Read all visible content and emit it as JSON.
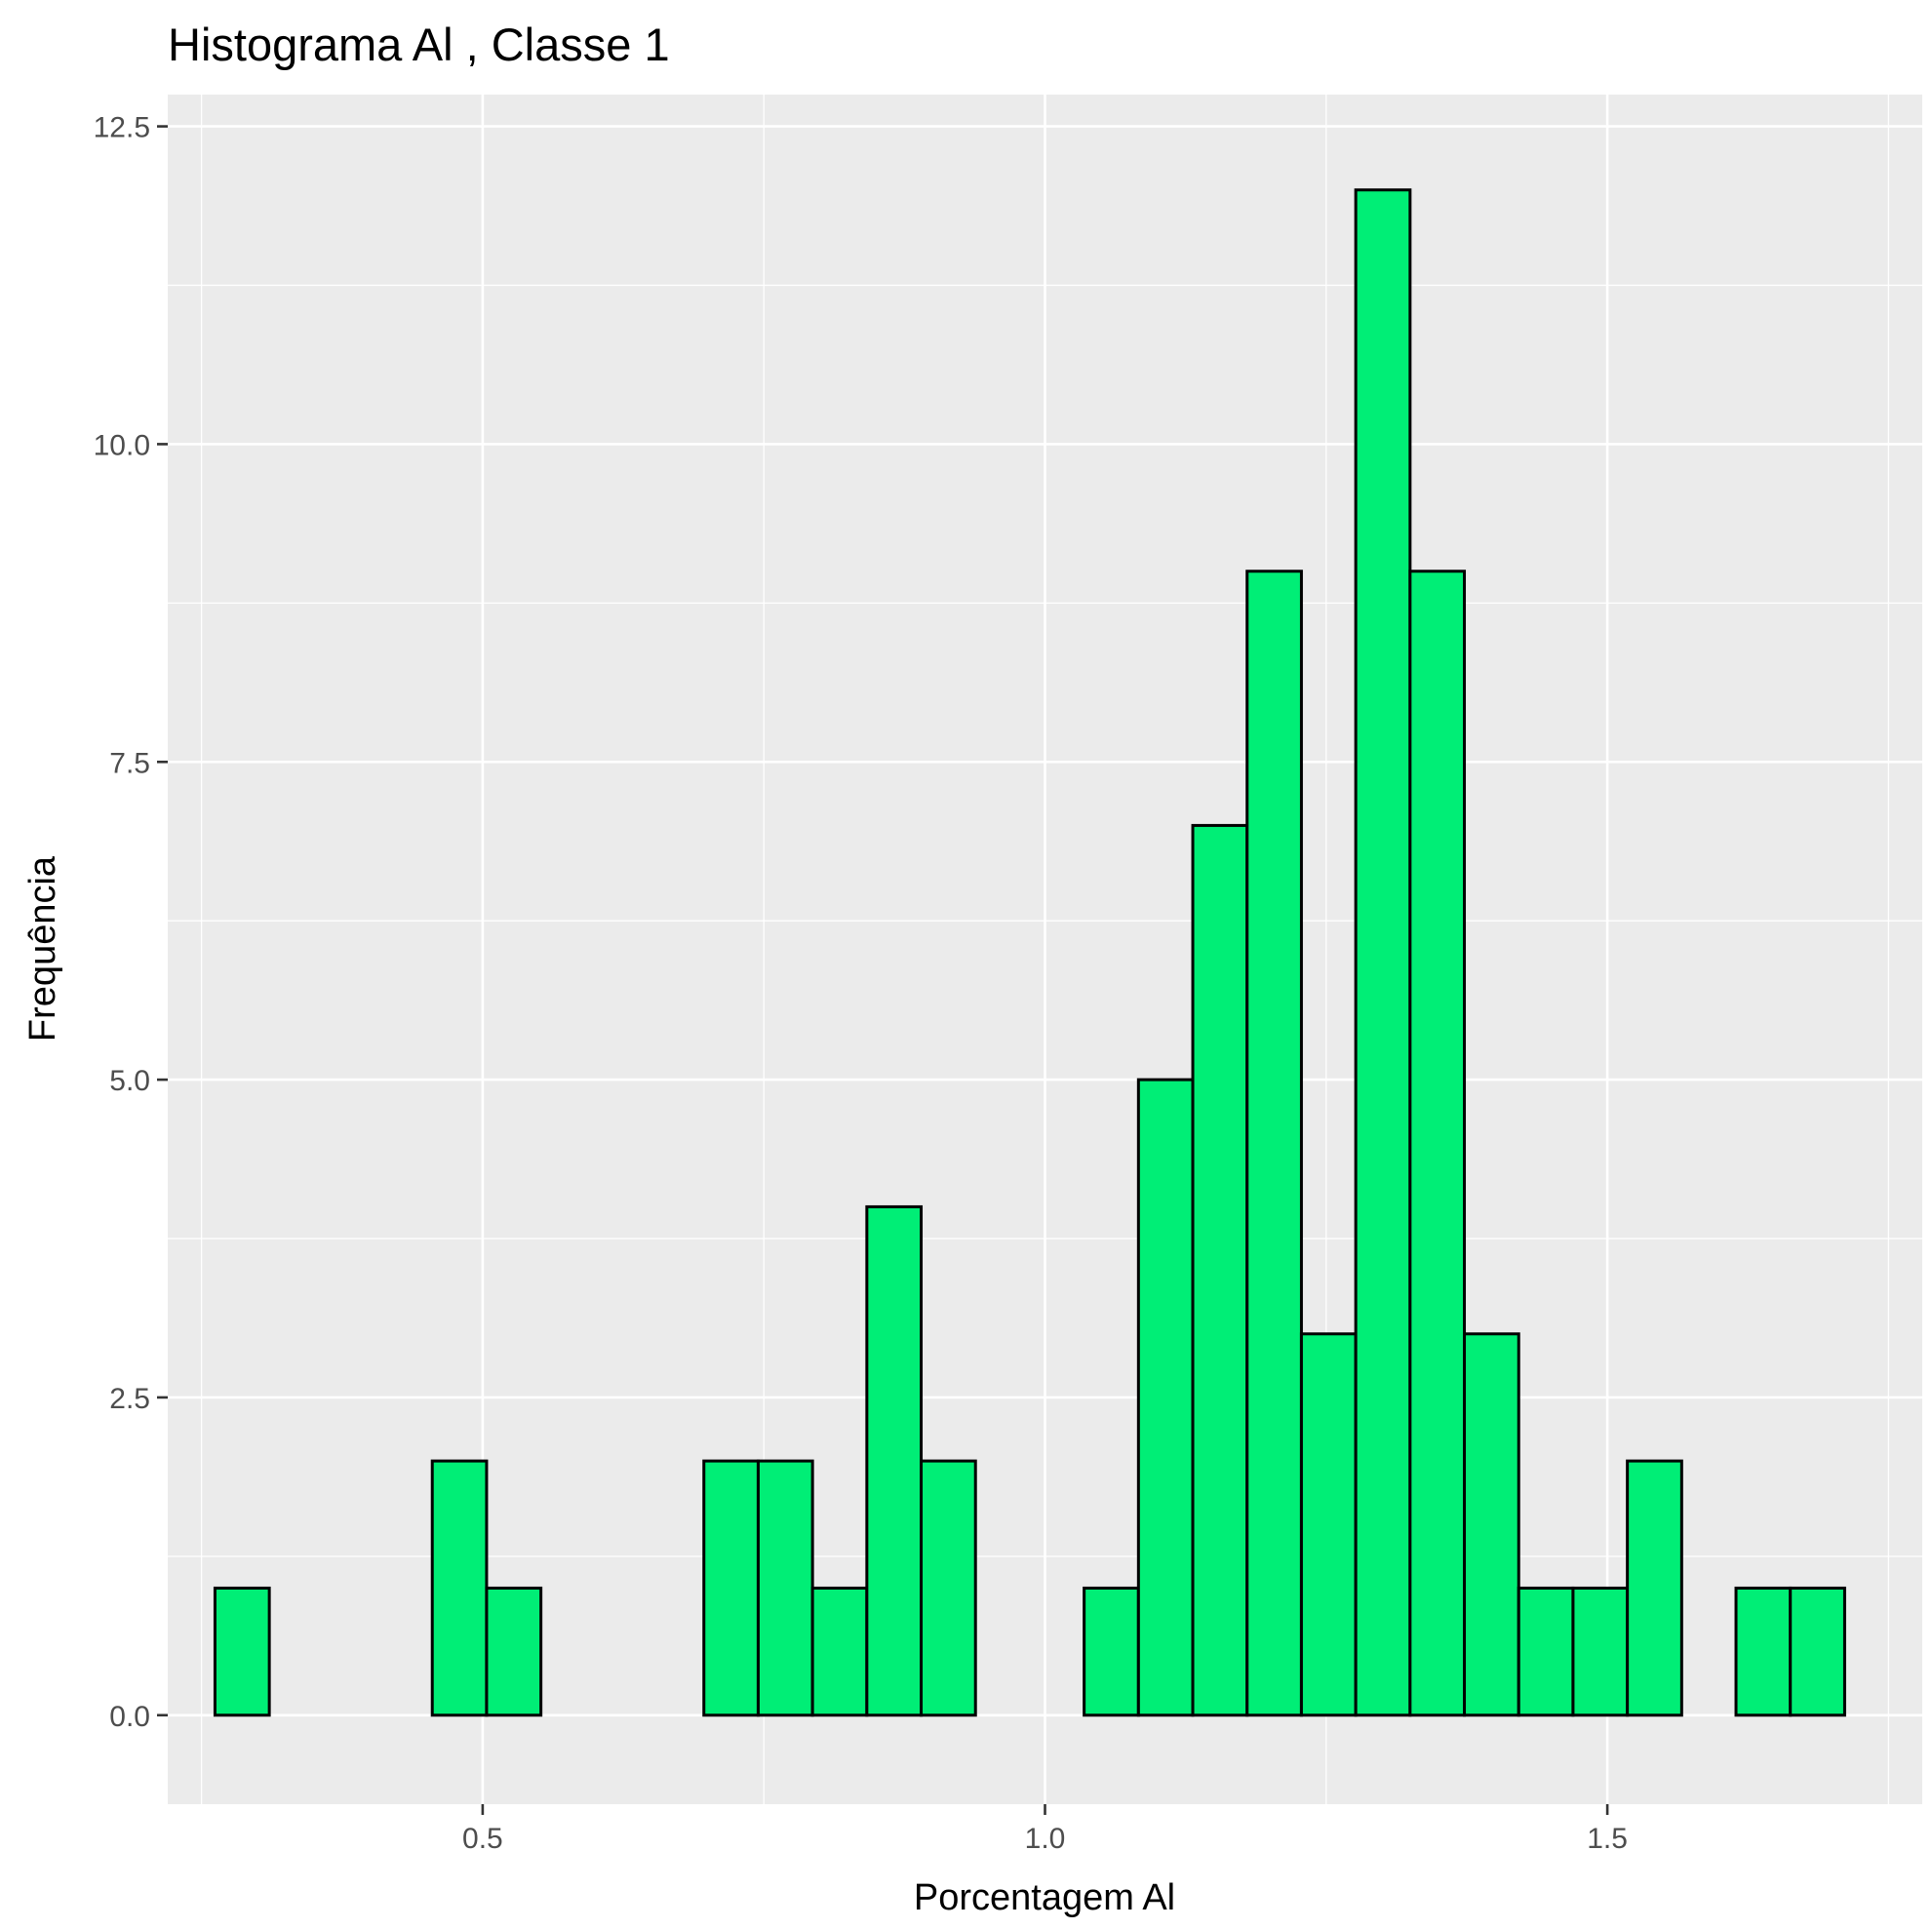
{
  "chart_data": {
    "type": "bar",
    "title": "Histograma  Al , Classe  1",
    "xlabel": "Porcentagem Al",
    "ylabel": "Frequência",
    "xlim": [
      0.22,
      1.78
    ],
    "ylim": [
      -0.7,
      12.75
    ],
    "x_ticks": [
      0.5,
      1.0,
      1.5
    ],
    "x_tick_labels": [
      "0.5",
      "1.0",
      "1.5"
    ],
    "y_ticks": [
      0.0,
      2.5,
      5.0,
      7.5,
      10.0,
      12.5
    ],
    "y_tick_labels": [
      "0.0",
      "2.5",
      "5.0",
      "7.5",
      "10.0",
      "12.5"
    ],
    "grid": true,
    "bin_width": 0.0483,
    "bins": [
      {
        "x0": 0.262,
        "x1": 0.3103,
        "count": 1
      },
      {
        "x0": 0.3103,
        "x1": 0.3586,
        "count": 0
      },
      {
        "x0": 0.3586,
        "x1": 0.4069,
        "count": 0
      },
      {
        "x0": 0.4069,
        "x1": 0.4552,
        "count": 0
      },
      {
        "x0": 0.4552,
        "x1": 0.5035,
        "count": 2
      },
      {
        "x0": 0.5035,
        "x1": 0.5518,
        "count": 1
      },
      {
        "x0": 0.5518,
        "x1": 0.6001,
        "count": 0
      },
      {
        "x0": 0.6001,
        "x1": 0.6484,
        "count": 0
      },
      {
        "x0": 0.6484,
        "x1": 0.6967,
        "count": 0
      },
      {
        "x0": 0.6967,
        "x1": 0.745,
        "count": 2
      },
      {
        "x0": 0.745,
        "x1": 0.7933,
        "count": 2
      },
      {
        "x0": 0.7933,
        "x1": 0.8416,
        "count": 1
      },
      {
        "x0": 0.8416,
        "x1": 0.8899,
        "count": 4
      },
      {
        "x0": 0.8899,
        "x1": 0.9382,
        "count": 2
      },
      {
        "x0": 0.9382,
        "x1": 0.9865,
        "count": 0
      },
      {
        "x0": 0.9865,
        "x1": 1.0348,
        "count": 0
      },
      {
        "x0": 1.0348,
        "x1": 1.0831,
        "count": 1
      },
      {
        "x0": 1.0831,
        "x1": 1.1314,
        "count": 5
      },
      {
        "x0": 1.1314,
        "x1": 1.1797,
        "count": 7
      },
      {
        "x0": 1.1797,
        "x1": 1.228,
        "count": 9
      },
      {
        "x0": 1.228,
        "x1": 1.2763,
        "count": 3
      },
      {
        "x0": 1.2763,
        "x1": 1.3246,
        "count": 12
      },
      {
        "x0": 1.3246,
        "x1": 1.3729,
        "count": 9
      },
      {
        "x0": 1.3729,
        "x1": 1.4212,
        "count": 3
      },
      {
        "x0": 1.4212,
        "x1": 1.4695,
        "count": 1
      },
      {
        "x0": 1.4695,
        "x1": 1.5178,
        "count": 1
      },
      {
        "x0": 1.5178,
        "x1": 1.5661,
        "count": 2
      },
      {
        "x0": 1.5661,
        "x1": 1.6144,
        "count": 0
      },
      {
        "x0": 1.6144,
        "x1": 1.6627,
        "count": 1
      },
      {
        "x0": 1.6627,
        "x1": 1.711,
        "count": 1
      }
    ],
    "colors": {
      "bar_fill": "#00EE76",
      "bar_outline": "#000000",
      "panel_background": "#EBEBEB",
      "grid": "#FFFFFF"
    }
  }
}
